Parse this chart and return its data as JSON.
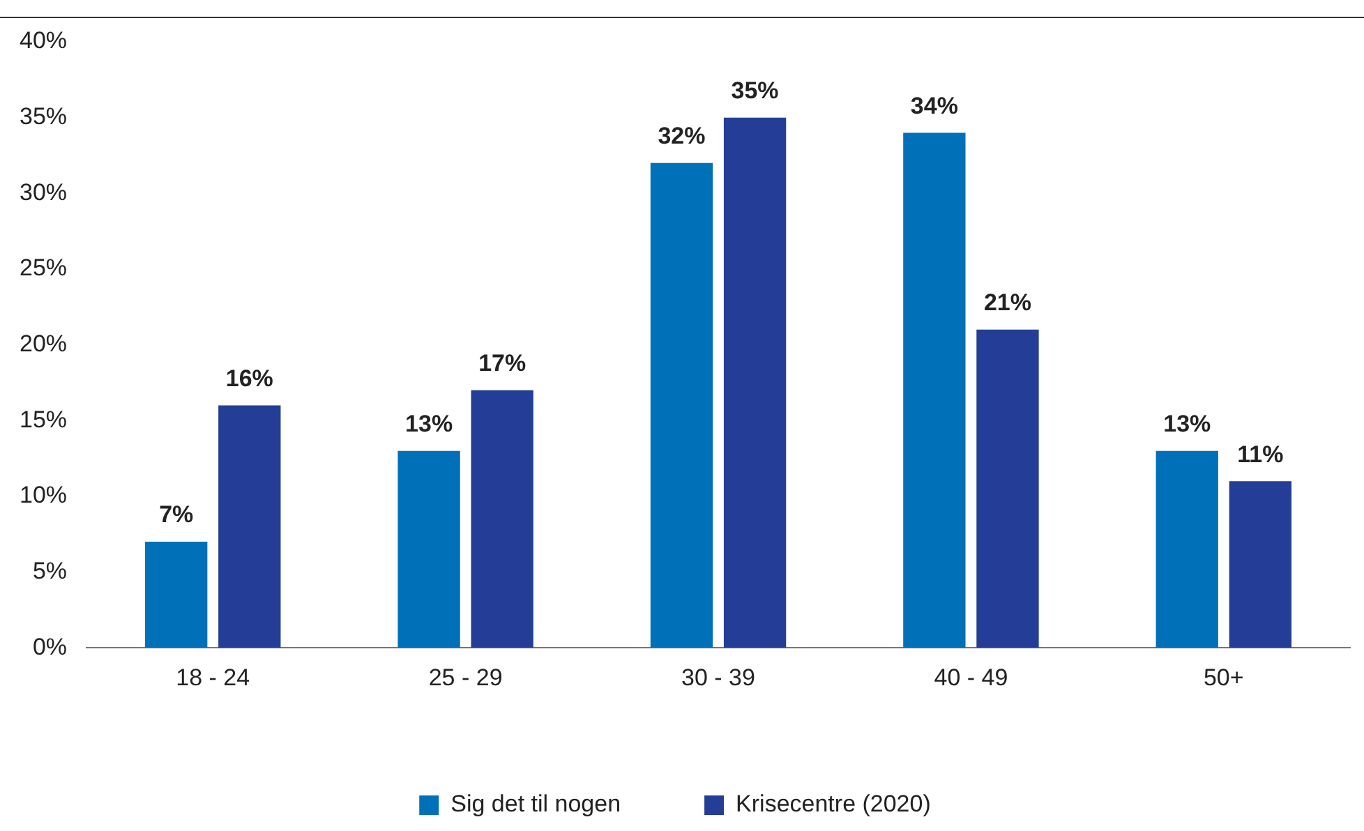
{
  "chart_data": {
    "type": "bar",
    "categories": [
      "18 - 24",
      "25 - 29",
      "30 - 39",
      "40 - 49",
      "50+"
    ],
    "series": [
      {
        "name": "Sig det til nogen",
        "color": "#0071b9",
        "values": [
          7,
          13,
          32,
          34,
          13
        ],
        "value_labels": [
          "7%",
          "13%",
          "32%",
          "34%",
          "13%"
        ]
      },
      {
        "name": "Krisecentre (2020)",
        "color": "#243e97",
        "values": [
          16,
          17,
          35,
          21,
          11
        ],
        "value_labels": [
          "16%",
          "17%",
          "35%",
          "21%",
          "11%"
        ]
      }
    ],
    "ylim": [
      0,
      40
    ],
    "yticks": [
      {
        "value": 0,
        "label": "0%"
      },
      {
        "value": 5,
        "label": "5%"
      },
      {
        "value": 10,
        "label": "10%"
      },
      {
        "value": 15,
        "label": "15%"
      },
      {
        "value": 20,
        "label": "20%"
      },
      {
        "value": 25,
        "label": "25%"
      },
      {
        "value": 30,
        "label": "30%"
      },
      {
        "value": 35,
        "label": "35%"
      },
      {
        "value": 40,
        "label": "40%"
      }
    ],
    "grid": false,
    "legend": "bottom"
  }
}
